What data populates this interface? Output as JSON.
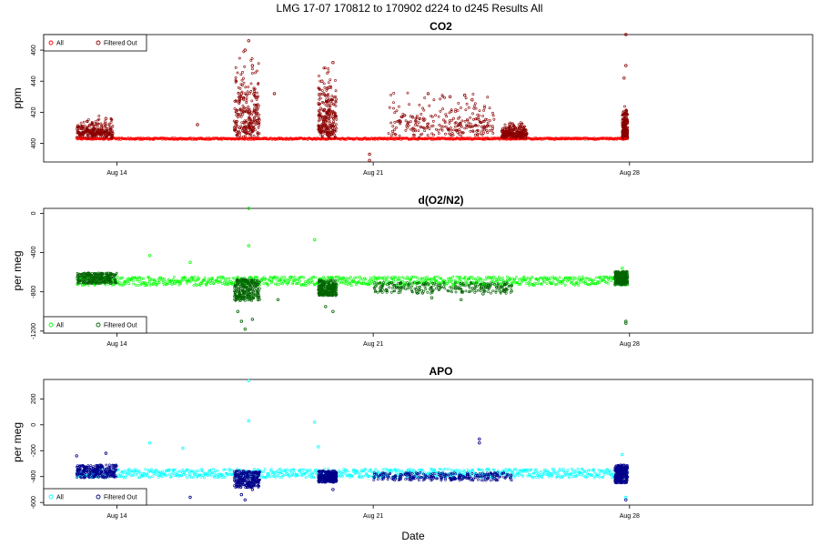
{
  "figure": {
    "suptitle": "LMG   17-07    170812 to 170902    d224 to d245   Results All",
    "xlabel": "Date"
  },
  "chart_data": [
    {
      "type": "scatter",
      "title": "CO2",
      "ylabel": "ppm",
      "xlim": [
        "2017-08-12",
        "2017-09-02"
      ],
      "ylim": [
        388,
        470
      ],
      "xticks": [
        {
          "label": "Aug 14",
          "date": "2017-08-14"
        },
        {
          "label": "Aug 21",
          "date": "2017-08-21"
        },
        {
          "label": "Aug 28",
          "date": "2017-08-28"
        }
      ],
      "yticks": [
        400,
        420,
        440,
        460
      ],
      "legend": {
        "position": "top-left",
        "entries": [
          "All",
          "Filtered Out"
        ]
      },
      "colors": {
        "all": "#ff0000",
        "filtered": "#8b0000"
      },
      "baseline": 403,
      "series": [
        {
          "name": "All",
          "color": "#ff0000",
          "points": [
            [
              "2017-08-13",
              404
            ],
            [
              "2017-08-15",
              403
            ],
            [
              "2017-08-18",
              403
            ],
            [
              "2017-08-21",
              403
            ],
            [
              "2017-08-24",
              403
            ],
            [
              "2017-08-27",
              403
            ],
            [
              "2017-08-27.9",
              403
            ]
          ]
        },
        {
          "name": "Filtered Out",
          "color": "#8b0000",
          "points": [
            [
              "2017-08-17.5",
              460
            ],
            [
              "2017-08-17.6",
              466
            ],
            [
              "2017-08-17.7",
              450
            ],
            [
              "2017-08-17.4",
              432
            ],
            [
              "2017-08-18.3",
              432
            ],
            [
              "2017-08-19.9",
              452
            ],
            [
              "2017-08-19.8",
              436
            ],
            [
              "2017-08-19.6",
              440
            ],
            [
              "2017-08-20.9",
              389
            ],
            [
              "2017-08-20.9",
              393
            ],
            [
              "2017-08-22.5",
              432
            ],
            [
              "2017-08-23.1",
              430
            ],
            [
              "2017-08-23.5",
              431
            ],
            [
              "2017-08-23.7",
              428
            ],
            [
              "2017-08-27.9",
              470
            ],
            [
              "2017-08-27.9",
              450
            ],
            [
              "2017-08-27.85",
              442
            ],
            [
              "2017-08-27.9",
              420
            ],
            [
              "2017-08-13.7",
              416
            ],
            [
              "2017-08-16.2",
              412
            ]
          ]
        }
      ]
    },
    {
      "type": "scatter",
      "title": "d(O2/N2)",
      "ylabel": "per meg",
      "xlim": [
        "2017-08-12",
        "2017-09-02"
      ],
      "ylim": [
        -1220,
        50
      ],
      "xticks": [
        {
          "label": "Aug 14",
          "date": "2017-08-14"
        },
        {
          "label": "Aug 21",
          "date": "2017-08-21"
        },
        {
          "label": "Aug 28",
          "date": "2017-08-28"
        }
      ],
      "yticks": [
        -1200,
        -800,
        -400,
        0
      ],
      "legend": {
        "position": "bottom-left",
        "entries": [
          "All",
          "Filtered Out"
        ]
      },
      "colors": {
        "all": "#00ff00",
        "filtered": "#006400"
      },
      "baseline": -690,
      "series": [
        {
          "name": "All",
          "color": "#00ff00",
          "points": [
            [
              "2017-08-17.6",
              50
            ],
            [
              "2017-08-17.6",
              -330
            ],
            [
              "2017-08-19.4",
              -270
            ],
            [
              "2017-08-14.9",
              -430
            ],
            [
              "2017-08-16.0",
              -500
            ],
            [
              "2017-08-27.8",
              -560
            ]
          ]
        },
        {
          "name": "Filtered Out",
          "color": "#006400",
          "points": [
            [
              "2017-08-17.5",
              -1180
            ],
            [
              "2017-08-17.4",
              -1100
            ],
            [
              "2017-08-17.7",
              -1080
            ],
            [
              "2017-08-17.3",
              -1000
            ],
            [
              "2017-08-19.9",
              -1000
            ],
            [
              "2017-08-19.7",
              -950
            ],
            [
              "2017-08-18.4",
              -880
            ],
            [
              "2017-08-27.9",
              -1120
            ],
            [
              "2017-08-27.9",
              -1100
            ],
            [
              "2017-08-22.6",
              -860
            ],
            [
              "2017-08-23.4",
              -880
            ],
            [
              "2017-08-24.0",
              -820
            ]
          ]
        }
      ]
    },
    {
      "type": "scatter",
      "title": "APO",
      "ylabel": "per meg",
      "xlim": [
        "2017-08-12",
        "2017-09-02"
      ],
      "ylim": [
        -620,
        350
      ],
      "xticks": [
        {
          "label": "Aug 14",
          "date": "2017-08-14"
        },
        {
          "label": "Aug 21",
          "date": "2017-08-21"
        },
        {
          "label": "Aug 28",
          "date": "2017-08-28"
        }
      ],
      "yticks": [
        -600,
        -400,
        -200,
        0,
        200
      ],
      "legend": {
        "position": "bottom-left",
        "entries": [
          "All",
          "Filtered Out"
        ]
      },
      "colors": {
        "all": "#00ffff",
        "filtered": "#00008b"
      },
      "baseline": -375,
      "series": [
        {
          "name": "All",
          "color": "#00ffff",
          "points": [
            [
              "2017-08-17.6",
              340
            ],
            [
              "2017-08-17.6",
              30
            ],
            [
              "2017-08-19.4",
              20
            ],
            [
              "2017-08-19.5",
              -170
            ],
            [
              "2017-08-14.9",
              -140
            ],
            [
              "2017-08-15.8",
              -180
            ],
            [
              "2017-08-27.8",
              -230
            ],
            [
              "2017-08-27.9",
              -560
            ]
          ]
        },
        {
          "name": "Filtered Out",
          "color": "#00008b",
          "points": [
            [
              "2017-08-17.5",
              -580
            ],
            [
              "2017-08-17.4",
              -540
            ],
            [
              "2017-08-17.7",
              -500
            ],
            [
              "2017-08-16.0",
              -560
            ],
            [
              "2017-08-19.9",
              -500
            ],
            [
              "2017-08-23.9",
              -110
            ],
            [
              "2017-08-23.9",
              -140
            ],
            [
              "2017-08-27.9",
              -580
            ],
            [
              "2017-08-12.9",
              -240
            ],
            [
              "2017-08-13.7",
              -220
            ]
          ]
        }
      ]
    }
  ]
}
